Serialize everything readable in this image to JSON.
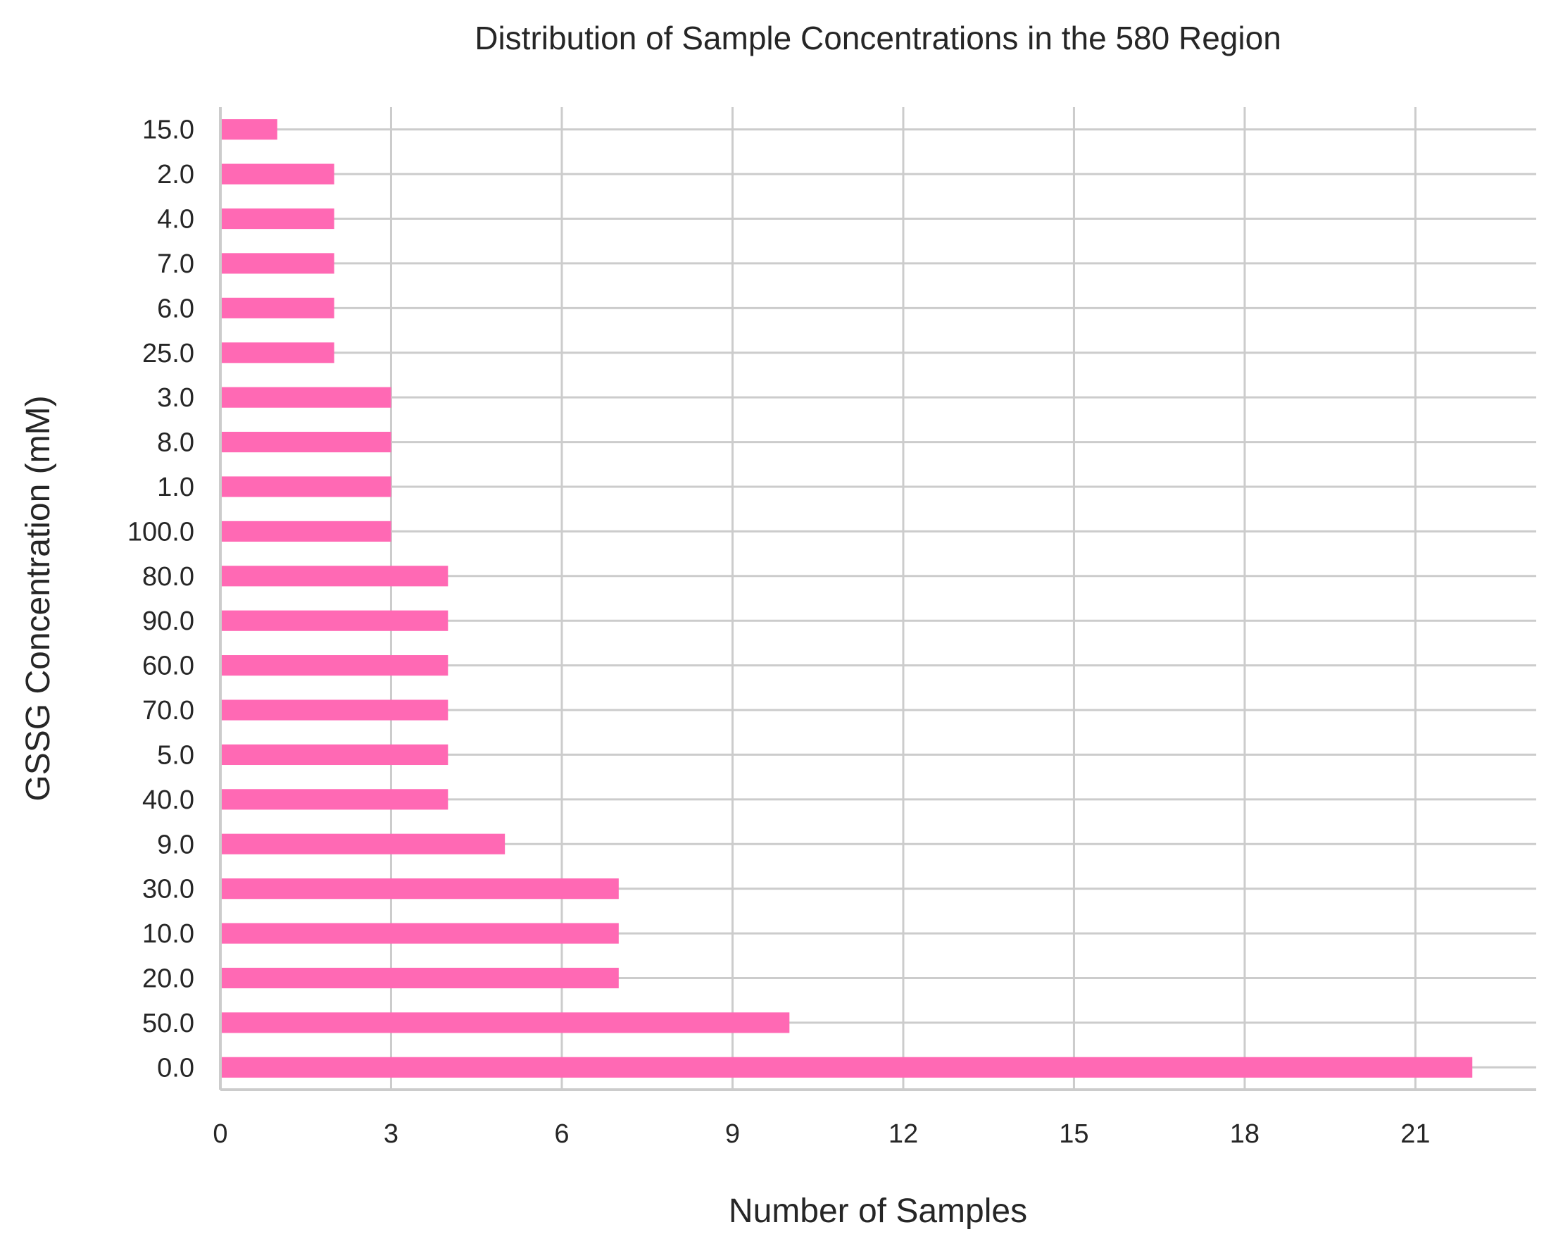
{
  "chart_data": {
    "type": "bar",
    "orientation": "horizontal",
    "title": "Distribution of Sample Concentrations in the 580 Region",
    "xlabel": "Number of Samples",
    "ylabel": "GSSG Concentration (mM)",
    "categories": [
      "15.0",
      "2.0",
      "4.0",
      "7.0",
      "6.0",
      "25.0",
      "3.0",
      "8.0",
      "1.0",
      "100.0",
      "80.0",
      "90.0",
      "60.0",
      "70.0",
      "5.0",
      "40.0",
      "9.0",
      "30.0",
      "10.0",
      "20.0",
      "50.0",
      "0.0"
    ],
    "values": [
      1,
      2,
      2,
      2,
      2,
      2,
      3,
      3,
      3,
      3,
      4,
      4,
      4,
      4,
      4,
      4,
      5,
      7,
      7,
      7,
      10,
      22
    ],
    "xticks": [
      "0",
      "3",
      "6",
      "9",
      "12",
      "15",
      "18",
      "21"
    ],
    "xlim": [
      0,
      23.1
    ],
    "grid": true,
    "bar_color": "#ff69b4"
  }
}
